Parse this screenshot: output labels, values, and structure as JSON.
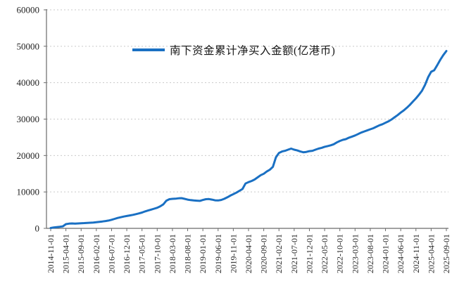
{
  "legend": {
    "label": "南下资金累计净买入金额(亿港币)"
  },
  "colors": {
    "line": "#1a70c3",
    "gridline": "#c9c9c9",
    "axis": "#6b6b6b",
    "tick_text": "#1f1f1f",
    "background": "#ffffff"
  },
  "chart_data": {
    "type": "line",
    "title": "",
    "legend_position": "top-center",
    "grid": "horizontal dotted gridlines at every 10000",
    "x_frequency": "monthly",
    "x_range_start": "2014-11-01",
    "x_range_end": "2025-09-01",
    "x_tick_labels": [
      "2014-11-01",
      "2015-04-01",
      "2015-09-01",
      "2016-02-01",
      "2016-07-01",
      "2016-12-01",
      "2017-05-01",
      "2017-10-01",
      "2018-03-01",
      "2018-08-01",
      "2019-01-01",
      "2019-06-01",
      "2019-11-01",
      "2020-04-01",
      "2020-09-01",
      "2021-02-01",
      "2021-07-01",
      "2021-12-01",
      "2022-05-01",
      "2022-10-01",
      "2023-03-01",
      "2023-08-01",
      "2024-01-01",
      "2024-06-01",
      "2024-11-01",
      "2025-04-01",
      "2025-09-01"
    ],
    "x_tick_step_months": 5,
    "ylim": [
      0,
      60000
    ],
    "yticks": [
      0,
      10000,
      20000,
      30000,
      40000,
      50000,
      60000
    ],
    "series": [
      {
        "name": "南下资金累计净买入金额(亿港币)",
        "unit": "亿港币",
        "color": "#1a70c3",
        "values": [
          100,
          250,
          350,
          450,
          550,
          1150,
          1300,
          1350,
          1300,
          1350,
          1400,
          1450,
          1500,
          1550,
          1600,
          1700,
          1800,
          1900,
          2000,
          2150,
          2350,
          2600,
          2850,
          3050,
          3250,
          3400,
          3550,
          3700,
          3900,
          4100,
          4350,
          4650,
          4900,
          5150,
          5400,
          5650,
          6050,
          6600,
          7600,
          8000,
          8100,
          8150,
          8250,
          8300,
          8100,
          7900,
          7750,
          7650,
          7600,
          7550,
          7800,
          8000,
          8050,
          7900,
          7700,
          7650,
          7800,
          8100,
          8500,
          9000,
          9400,
          9800,
          10300,
          10800,
          12300,
          12700,
          13000,
          13400,
          14000,
          14600,
          15000,
          15600,
          16100,
          16900,
          19500,
          20700,
          21100,
          21300,
          21600,
          21900,
          21600,
          21400,
          21100,
          20900,
          21000,
          21200,
          21300,
          21600,
          21900,
          22100,
          22400,
          22600,
          22800,
          23100,
          23600,
          24000,
          24300,
          24500,
          24900,
          25200,
          25500,
          25900,
          26300,
          26600,
          26900,
          27200,
          27500,
          27900,
          28300,
          28600,
          29000,
          29400,
          29900,
          30500,
          31100,
          31800,
          32400,
          33100,
          33900,
          34800,
          35700,
          36700,
          37800,
          39400,
          41500,
          43000,
          43400,
          44800,
          46300,
          47600,
          48700
        ]
      }
    ]
  }
}
